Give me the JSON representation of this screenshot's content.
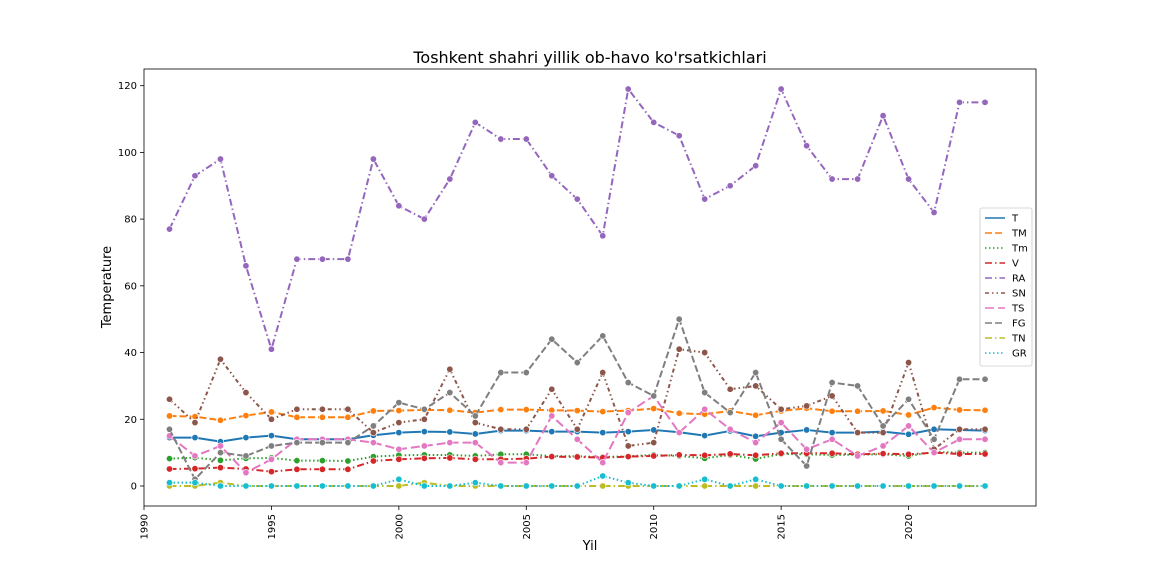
{
  "chart_data": {
    "type": "line",
    "title": "Toshkent shahri yillik ob-havo ko'rsatkichlari",
    "xlabel": "Yil",
    "ylabel": "Temperature",
    "xlim": [
      1990,
      2025
    ],
    "ylim": [
      -6,
      125
    ],
    "xticks": [
      1990,
      1995,
      2000,
      2005,
      2010,
      2015,
      2020
    ],
    "yticks": [
      0,
      20,
      40,
      60,
      80,
      100,
      120
    ],
    "grid": false,
    "legend_position": "center-right",
    "x": [
      1991,
      1992,
      1993,
      1994,
      1995,
      1996,
      1997,
      1998,
      1999,
      2000,
      2001,
      2002,
      2003,
      2004,
      2005,
      2006,
      2007,
      2008,
      2009,
      2010,
      2011,
      2012,
      2013,
      2014,
      2015,
      2016,
      2017,
      2018,
      2019,
      2020,
      2021,
      2022,
      2023
    ],
    "series": [
      {
        "name": "T",
        "color": "#1f77b4",
        "dash": "solid",
        "values": [
          14.5,
          14.5,
          13.3,
          14.5,
          15.1,
          14.0,
          14.0,
          14.0,
          15.2,
          16.0,
          16.3,
          16.2,
          15.6,
          16.6,
          16.6,
          16.3,
          16.3,
          16.0,
          16.3,
          16.8,
          16.1,
          15.1,
          16.5,
          14.9,
          16.0,
          16.8,
          16.0,
          16.0,
          16.3,
          15.5,
          17.0,
          16.8,
          16.6
        ]
      },
      {
        "name": "TM",
        "color": "#ff7f0e",
        "dash": "dashed",
        "values": [
          21.0,
          20.8,
          19.7,
          21.1,
          22.2,
          20.6,
          20.6,
          20.6,
          22.5,
          22.6,
          22.8,
          22.7,
          22.0,
          22.9,
          22.9,
          22.7,
          22.6,
          22.3,
          22.6,
          23.2,
          21.8,
          21.5,
          22.5,
          21.2,
          22.5,
          23.3,
          22.4,
          22.4,
          22.5,
          21.3,
          23.5,
          22.8,
          22.7
        ]
      },
      {
        "name": "Tm",
        "color": "#2ca02c",
        "dash": "dotted",
        "values": [
          8.2,
          8.5,
          7.7,
          8.3,
          8.4,
          7.6,
          7.6,
          7.5,
          8.8,
          9.2,
          9.3,
          9.3,
          9.0,
          9.5,
          9.5,
          9.0,
          8.9,
          8.7,
          8.9,
          9.3,
          9.0,
          8.3,
          9.3,
          8.1,
          9.6,
          9.5,
          9.3,
          9.4,
          9.5,
          9.0,
          10.2,
          10.0,
          10.0
        ]
      },
      {
        "name": "V",
        "color": "#d62728",
        "dash": "dashdot",
        "values": [
          5.1,
          5.2,
          5.5,
          5.1,
          4.3,
          5.0,
          5.0,
          5.0,
          7.5,
          8.0,
          8.3,
          8.4,
          8.0,
          8.0,
          8.2,
          8.8,
          8.7,
          8.5,
          8.8,
          9.0,
          9.3,
          9.2,
          9.6,
          9.2,
          9.8,
          9.8,
          9.8,
          9.5,
          9.7,
          9.5,
          10.0,
          9.6,
          9.6
        ]
      },
      {
        "name": "RA",
        "color": "#9467bd",
        "dash": "dashdot",
        "values": [
          77,
          93,
          98,
          66,
          41,
          68,
          68,
          68,
          98,
          84,
          80,
          92,
          109,
          104,
          104,
          93,
          86,
          75,
          119,
          109,
          105,
          86,
          90,
          96,
          119,
          102,
          92,
          92,
          111,
          92,
          82,
          115,
          115
        ]
      },
      {
        "name": "SN",
        "color": "#8c564b",
        "dash": "loosedashdot",
        "values": [
          26,
          19,
          38,
          28,
          20,
          23,
          23,
          23,
          16,
          19,
          20,
          35,
          19,
          17,
          17,
          29,
          17,
          34,
          12,
          13,
          41,
          40,
          29,
          30,
          23,
          24,
          27,
          16,
          16,
          37,
          11,
          17,
          17
        ]
      },
      {
        "name": "TS",
        "color": "#e377c2",
        "dash": "denseddash",
        "values": [
          15,
          9,
          12,
          4,
          8,
          14,
          14,
          14,
          13,
          11,
          12,
          13,
          13,
          7,
          7,
          21,
          14,
          7,
          22,
          27,
          16,
          23,
          17,
          13,
          19,
          11,
          14,
          9,
          12,
          18,
          10,
          14,
          14
        ]
      },
      {
        "name": "FG",
        "color": "#7f7f7f",
        "dash": "dashed",
        "values": [
          17,
          2,
          10,
          9,
          12,
          13,
          13,
          13,
          18,
          25,
          23,
          28,
          21,
          34,
          34,
          44,
          37,
          45,
          31,
          27,
          50,
          28,
          22,
          34,
          14,
          6,
          31,
          30,
          18,
          26,
          14,
          32,
          32
        ]
      },
      {
        "name": "TN",
        "color": "#bcbd22",
        "dash": "dashdot",
        "values": [
          0,
          0,
          1,
          0,
          0,
          0,
          0,
          0,
          0,
          0,
          1,
          0,
          0,
          0,
          0,
          0,
          0,
          0,
          0,
          0,
          0,
          0,
          0,
          0,
          0,
          0,
          0,
          0,
          0,
          0,
          0,
          0,
          0
        ]
      },
      {
        "name": "GR",
        "color": "#17becf",
        "dash": "dotted",
        "values": [
          1,
          1,
          0,
          0,
          0,
          0,
          0,
          0,
          0,
          2,
          0,
          0,
          1,
          0,
          0,
          0,
          0,
          3,
          1,
          0,
          0,
          2,
          0,
          2,
          0,
          0,
          0,
          0,
          0,
          0,
          0,
          0,
          0
        ]
      }
    ]
  }
}
